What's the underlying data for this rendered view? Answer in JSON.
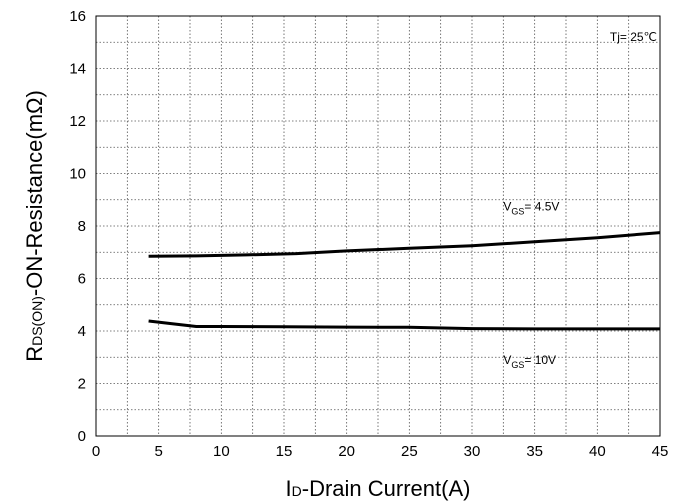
{
  "chart_data": {
    "type": "line",
    "x_title": {
      "main_letter": "I",
      "subscript": "D",
      "rest": "-Drain Current(A)"
    },
    "y_title": {
      "main_letter": "R",
      "subscript": "DS(ON)",
      "rest": "-ON-Resistance(mΩ)"
    },
    "xlim": [
      0,
      45
    ],
    "ylim": [
      0,
      16
    ],
    "x_ticks": [
      0,
      5,
      10,
      15,
      20,
      25,
      30,
      35,
      40,
      45
    ],
    "y_ticks": [
      0,
      2,
      4,
      6,
      8,
      10,
      12,
      14,
      16
    ],
    "grid": true,
    "grid_style": "dotted",
    "series": [
      {
        "name": "VGS= 4.5V",
        "label": {
          "prefix": "V",
          "sub": "GS",
          "suffix": "= 4.5V"
        },
        "x": [
          4.2,
          8,
          12,
          16,
          20,
          25,
          30,
          35,
          40,
          45
        ],
        "y": [
          6.85,
          6.86,
          6.9,
          6.95,
          7.05,
          7.15,
          7.25,
          7.4,
          7.55,
          7.75
        ]
      },
      {
        "name": "VGS= 10V",
        "label": {
          "prefix": "V",
          "sub": "GS",
          "suffix": "= 10V"
        },
        "x": [
          4.2,
          6,
          8,
          10,
          15,
          20,
          25,
          30,
          35,
          40,
          45
        ],
        "y": [
          4.38,
          4.28,
          4.17,
          4.17,
          4.16,
          4.15,
          4.14,
          4.09,
          4.08,
          4.08,
          4.08
        ]
      }
    ],
    "annotations": [
      {
        "text": "Tj= 25℃",
        "x": 41,
        "y": 15.2
      }
    ],
    "series_label_positions": [
      {
        "x": 32.5,
        "y": 8.6
      },
      {
        "x": 32.5,
        "y": 2.75
      }
    ]
  }
}
